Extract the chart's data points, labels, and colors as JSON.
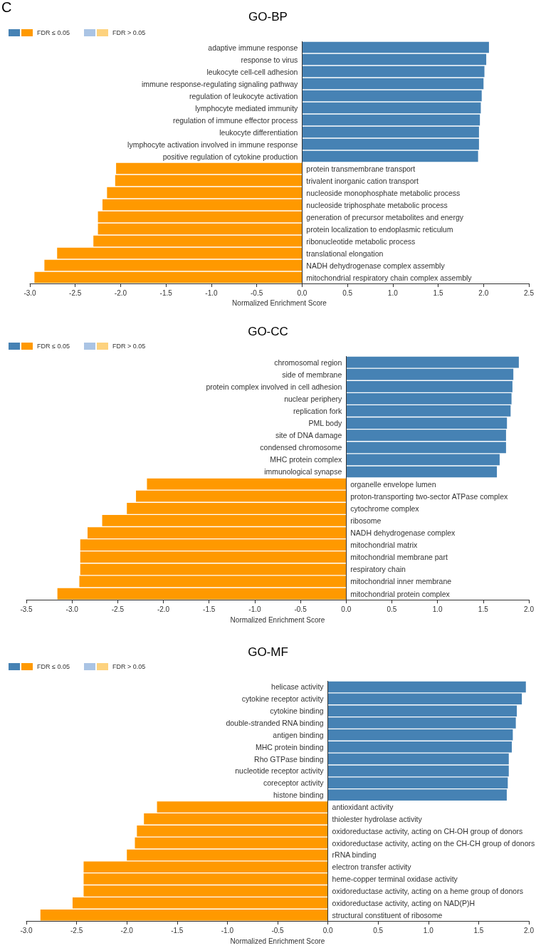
{
  "chart_data": [
    {
      "type": "bar",
      "orientation": "horizontal",
      "title": "GO-BP",
      "xlabel": "Normalized Enrichment Score",
      "annotations": [
        "C"
      ],
      "legend": "top left",
      "grid": false,
      "tick_labels": "x",
      "ref_lines": [
        {
          "axis": "x",
          "value": 0,
          "color": "#333333"
        }
      ],
      "categories": [
        "adaptive immune response",
        "response to virus",
        "leukocyte cell-cell adhesion",
        "immune response-regulating signaling pathway",
        "regulation of leukocyte activation",
        "lymphocyte mediated immunity",
        "regulation of immune effector process",
        "leukocyte differentiation",
        "lymphocyte activation involved in immune response",
        "positive regulation of cytokine production",
        "protein transmembrane transport",
        "trivalent inorganic cation transport",
        "nucleoside monophosphate metabolic process",
        "nucleoside triphosphate metabolic process",
        "generation of precursor metabolites and energy",
        "protein localization to endoplasmic reticulum",
        "ribonucleotide metabolic process",
        "translational elongation",
        "NADH dehydrogenase complex assembly",
        "mitochondrial respiratory chain complex assembly"
      ],
      "xlim": [
        -3,
        2.5
      ],
      "xticks": [
        {
          "value": -3,
          "label": "-3.0"
        },
        -2.5,
        {
          "value": -2,
          "label": "-2.0"
        },
        -1.5,
        {
          "value": -1,
          "label": "-1.0"
        },
        -0.5,
        {
          "value": 0,
          "label": "0.0"
        },
        0.5,
        {
          "value": 1,
          "label": "1.0"
        },
        1.5,
        {
          "value": 2,
          "label": "2.0"
        },
        2.5
      ],
      "series": [
        {
          "name": "FDR ≤ 0.05",
          "colors": [
            "#4682b4",
            "#4682b4",
            "#4682b4",
            "#4682b4",
            "#4682b4",
            "#4682b4",
            "#4682b4",
            "#4682b4",
            "#4682b4",
            "#4682b4",
            "#ff9900",
            "#ff9900",
            "#ff9900",
            "#ff9900",
            "#ff9900",
            "#ff9900",
            "#ff9900",
            "#ff9900",
            "#ff9900",
            "#ff9900"
          ],
          "values": [
            2.06,
            2.03,
            2.01,
            2.0,
            1.98,
            1.97,
            1.96,
            1.95,
            1.95,
            1.94,
            -2.05,
            -2.06,
            -2.15,
            -2.2,
            -2.25,
            -2.25,
            -2.3,
            -2.7,
            -2.84,
            -2.95
          ]
        },
        {
          "name": "FDR > 0.05",
          "colors": [
            "#aac4e4",
            "#aac4e4",
            "#aac4e4",
            "#aac4e4",
            "#aac4e4",
            "#aac4e4",
            "#aac4e4",
            "#aac4e4",
            "#aac4e4",
            "#aac4e4",
            "#fdd27e",
            "#fdd27e",
            "#fdd27e",
            "#fdd27e",
            "#fdd27e",
            "#fdd27e",
            "#fdd27e",
            "#fdd27e",
            "#fdd27e",
            "#fdd27e"
          ],
          "values": [
            null,
            null,
            null,
            null,
            null,
            null,
            null,
            null,
            null,
            null,
            null,
            null,
            null,
            null,
            null,
            null,
            null,
            null,
            null,
            null
          ]
        }
      ]
    },
    {
      "type": "bar",
      "orientation": "horizontal",
      "title": "GO-CC",
      "xlabel": "Normalized Enrichment Score",
      "legend": "top left",
      "grid": false,
      "tick_labels": "x",
      "ref_lines": [
        {
          "axis": "x",
          "value": 0,
          "color": "#333333"
        }
      ],
      "categories": [
        "chromosomal region",
        "side of membrane",
        "protein complex involved in cell adhesion",
        "nuclear periphery",
        "replication fork",
        "PML body",
        "site of DNA damage",
        "condensed chromosome",
        "MHC protein complex",
        "immunological synapse",
        "organelle envelope lumen",
        "proton-transporting two-sector ATPase complex",
        "cytochrome complex",
        "ribosome",
        "NADH dehydrogenase complex",
        "mitochondrial matrix",
        "mitochondrial membrane part",
        "respiratory chain",
        "mitochondrial inner membrane",
        "mitochondrial protein complex"
      ],
      "xlim": [
        -3.5,
        2
      ],
      "xticks": [
        -3.5,
        {
          "value": -3,
          "label": "-3.0"
        },
        -2.5,
        {
          "value": -2,
          "label": "-2.0"
        },
        -1.5,
        {
          "value": -1,
          "label": "-1.0"
        },
        -0.5,
        {
          "value": 0,
          "label": "0.0"
        },
        0.5,
        {
          "value": 1,
          "label": "1.0"
        },
        1.5,
        {
          "value": 2,
          "label": "2.0"
        }
      ],
      "series": [
        {
          "name": "FDR ≤ 0.05",
          "colors": [
            "#4682b4",
            "#4682b4",
            "#4682b4",
            "#4682b4",
            "#4682b4",
            "#4682b4",
            "#4682b4",
            "#4682b4",
            "#4682b4",
            "#4682b4",
            "#ff9900",
            "#ff9900",
            "#ff9900",
            "#ff9900",
            "#ff9900",
            "#ff9900",
            "#ff9900",
            "#ff9900",
            "#ff9900",
            "#ff9900"
          ],
          "values": [
            1.89,
            1.83,
            1.82,
            1.81,
            1.8,
            1.76,
            1.75,
            1.75,
            1.68,
            1.65,
            -2.18,
            -2.3,
            -2.4,
            -2.67,
            -2.83,
            -2.91,
            -2.91,
            -2.91,
            -2.92,
            -3.16
          ]
        },
        {
          "name": "FDR > 0.05",
          "colors": [
            "#aac4e4",
            "#aac4e4",
            "#aac4e4",
            "#aac4e4",
            "#aac4e4",
            "#aac4e4",
            "#aac4e4",
            "#aac4e4",
            "#aac4e4",
            "#aac4e4",
            "#fdd27e",
            "#fdd27e",
            "#fdd27e",
            "#fdd27e",
            "#fdd27e",
            "#fdd27e",
            "#fdd27e",
            "#fdd27e",
            "#fdd27e",
            "#fdd27e"
          ],
          "values": [
            null,
            null,
            null,
            null,
            null,
            null,
            null,
            null,
            null,
            null,
            null,
            null,
            null,
            null,
            null,
            null,
            null,
            null,
            null,
            null
          ]
        }
      ]
    },
    {
      "type": "bar",
      "orientation": "horizontal",
      "title": "GO-MF",
      "xlabel": "Normalized Enrichment Score",
      "legend": "top left",
      "grid": false,
      "tick_labels": "x",
      "ref_lines": [
        {
          "axis": "x",
          "value": 0,
          "color": "#333333"
        }
      ],
      "categories": [
        "helicase activity",
        "cytokine receptor activity",
        "cytokine binding",
        "double-stranded RNA binding",
        "antigen binding",
        "MHC protein binding",
        "Rho GTPase binding",
        "nucleotide receptor activity",
        "coreceptor activity",
        "histone binding",
        "antioxidant activity",
        "thiolester hydrolase activity",
        "oxidoreductase activity, acting on CH-OH group of donors",
        "oxidoreductase activity, acting on the CH-CH group of donors",
        "rRNA binding",
        "electron transfer activity",
        "heme-copper terminal oxidase activity",
        "oxidoreductase activity, acting on a heme group of donors",
        "oxidoreductase activity, acting on NAD(P)H",
        "structural constituent of ribosome"
      ],
      "xlim": [
        -3,
        2
      ],
      "xticks": [
        {
          "value": -3,
          "label": "-3.0"
        },
        -2.5,
        {
          "value": -2,
          "label": "-2.0"
        },
        -1.5,
        {
          "value": -1,
          "label": "-1.0"
        },
        -0.5,
        {
          "value": 0,
          "label": "0.0"
        },
        0.5,
        {
          "value": 1,
          "label": "1.0"
        },
        1.5,
        {
          "value": 2,
          "label": "2.0"
        }
      ],
      "series": [
        {
          "name": "FDR ≤ 0.05",
          "colors": [
            "#4682b4",
            "#4682b4",
            "#4682b4",
            "#4682b4",
            "#4682b4",
            "#4682b4",
            "#4682b4",
            "#4682b4",
            "#4682b4",
            "#4682b4",
            "#ff9900",
            "#ff9900",
            "#ff9900",
            "#ff9900",
            "#ff9900",
            "#ff9900",
            "#ff9900",
            "#ff9900",
            "#ff9900",
            "#ff9900"
          ],
          "values": [
            1.97,
            1.93,
            1.88,
            1.87,
            1.84,
            1.83,
            1.8,
            1.8,
            1.79,
            1.78,
            -1.7,
            -1.83,
            -1.9,
            -1.92,
            -2.0,
            -2.43,
            -2.43,
            -2.43,
            -2.54,
            -2.86
          ]
        },
        {
          "name": "FDR > 0.05",
          "colors": [
            "#aac4e4",
            "#aac4e4",
            "#aac4e4",
            "#aac4e4",
            "#aac4e4",
            "#aac4e4",
            "#aac4e4",
            "#aac4e4",
            "#aac4e4",
            "#aac4e4",
            "#fdd27e",
            "#fdd27e",
            "#fdd27e",
            "#fdd27e",
            "#fdd27e",
            "#fdd27e",
            "#fdd27e",
            "#fdd27e",
            "#fdd27e",
            "#fdd27e"
          ],
          "values": [
            null,
            null,
            null,
            null,
            null,
            null,
            null,
            null,
            null,
            null,
            null,
            null,
            null,
            null,
            null,
            null,
            null,
            null,
            null,
            null
          ]
        }
      ]
    }
  ]
}
